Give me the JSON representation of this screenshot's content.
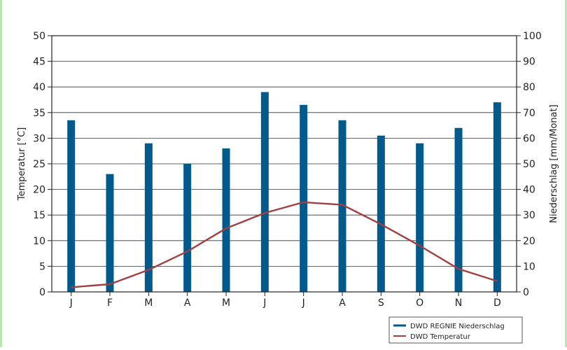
{
  "chart_data": {
    "type": "bar+line",
    "categories": [
      "J",
      "F",
      "M",
      "A",
      "M",
      "J",
      "J",
      "A",
      "S",
      "O",
      "N",
      "D"
    ],
    "series": [
      {
        "name": "DWD REGNIE Niederschlag",
        "type": "bar",
        "axis": "right",
        "color": "#005a8c",
        "values": [
          67,
          46,
          58,
          50,
          56,
          78,
          73,
          67,
          61,
          58,
          64,
          74
        ]
      },
      {
        "name": "DWD Temperatur",
        "type": "line",
        "axis": "left",
        "color": "#a04040",
        "values": [
          0.9,
          1.5,
          4.3,
          7.9,
          12.4,
          15.4,
          17.5,
          17.0,
          13.2,
          9.0,
          4.5,
          2.1
        ]
      }
    ],
    "ylabel_left": "Temperatur [°C]",
    "ylabel_right": "Niederschlag [mm/Monat]",
    "ylim_left": [
      0,
      50
    ],
    "ylim_right": [
      0,
      100
    ],
    "yticks_left": [
      "0",
      "5",
      "10",
      "15",
      "20",
      "25",
      "30",
      "35",
      "40",
      "45",
      "50"
    ],
    "yticks_right": [
      "0",
      "10",
      "20",
      "30",
      "40",
      "50",
      "60",
      "70",
      "80",
      "90",
      "100"
    ],
    "grid": true,
    "legend_position": "bottom-right"
  }
}
